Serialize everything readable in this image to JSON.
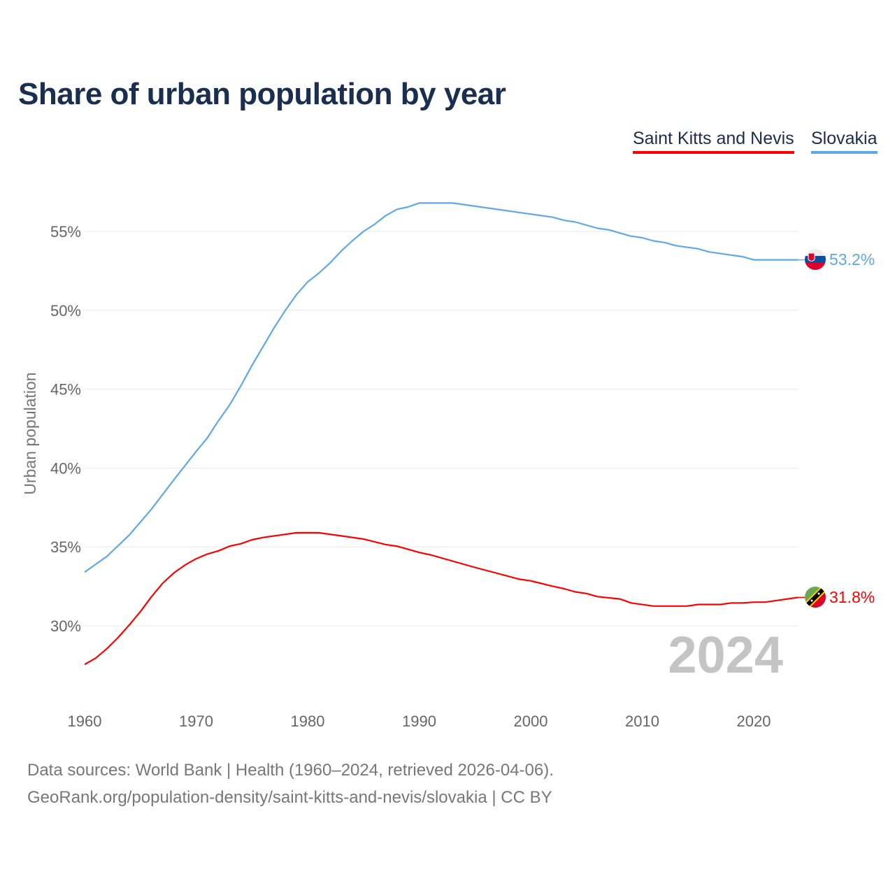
{
  "chart_data": {
    "type": "line",
    "title": "Share of urban population by year",
    "ylabel": "Urban population",
    "xlabel": "",
    "xlim": [
      1960,
      2024
    ],
    "ylim": [
      25.5,
      58.5
    ],
    "x_ticks": [
      1960,
      1970,
      1980,
      1990,
      2000,
      2010,
      2020
    ],
    "y_ticks": [
      30,
      35,
      40,
      45,
      50,
      55
    ],
    "y_tick_labels": [
      "30%",
      "35%",
      "40%",
      "45%",
      "50%",
      "55%"
    ],
    "grid": true,
    "year_watermark": "2024",
    "legend_position": "top-right",
    "series": [
      {
        "name": "Saint Kitts and Nevis",
        "color": "#ff0000",
        "end_label": "31.8%",
        "points": [
          [
            1960,
            27.55
          ],
          [
            1961,
            27.95
          ],
          [
            1962,
            28.55
          ],
          [
            1963,
            29.25
          ],
          [
            1964,
            30.05
          ],
          [
            1965,
            30.9
          ],
          [
            1966,
            31.85
          ],
          [
            1967,
            32.7
          ],
          [
            1968,
            33.35
          ],
          [
            1969,
            33.85
          ],
          [
            1970,
            34.25
          ],
          [
            1971,
            34.55
          ],
          [
            1972,
            34.75
          ],
          [
            1973,
            35.05
          ],
          [
            1974,
            35.2
          ],
          [
            1975,
            35.45
          ],
          [
            1976,
            35.6
          ],
          [
            1978,
            35.8
          ],
          [
            1979,
            35.9
          ],
          [
            1981,
            35.9
          ],
          [
            1983,
            35.7
          ],
          [
            1985,
            35.5
          ],
          [
            1987,
            35.15
          ],
          [
            1988,
            35.05
          ],
          [
            1990,
            34.65
          ],
          [
            1991,
            34.5
          ],
          [
            1995,
            33.7
          ],
          [
            1999,
            32.95
          ],
          [
            2000,
            32.85
          ],
          [
            2002,
            32.5
          ],
          [
            2003,
            32.35
          ],
          [
            2004,
            32.15
          ],
          [
            2005,
            32.05
          ],
          [
            2006,
            31.85
          ],
          [
            2008,
            31.7
          ],
          [
            2009,
            31.45
          ],
          [
            2011,
            31.25
          ],
          [
            2014,
            31.25
          ],
          [
            2015,
            31.35
          ],
          [
            2017,
            31.35
          ],
          [
            2018,
            31.45
          ],
          [
            2019,
            31.45
          ],
          [
            2020,
            31.5
          ],
          [
            2021,
            31.5
          ],
          [
            2024,
            31.8
          ]
        ]
      },
      {
        "name": "Slovakia",
        "color": "#5fa8e8",
        "end_label": "53.2%",
        "points": [
          [
            1960,
            33.4
          ],
          [
            1962,
            34.4
          ],
          [
            1964,
            35.75
          ],
          [
            1966,
            37.4
          ],
          [
            1968,
            39.25
          ],
          [
            1970,
            41.05
          ],
          [
            1971,
            41.9
          ],
          [
            1972,
            43.0
          ],
          [
            1973,
            44.0
          ],
          [
            1974,
            45.2
          ],
          [
            1975,
            46.5
          ],
          [
            1976,
            47.7
          ],
          [
            1977,
            48.9
          ],
          [
            1978,
            50.0
          ],
          [
            1979,
            51.0
          ],
          [
            1980,
            51.8
          ],
          [
            1981,
            52.35
          ],
          [
            1982,
            53.0
          ],
          [
            1983,
            53.75
          ],
          [
            1984,
            54.4
          ],
          [
            1985,
            55.0
          ],
          [
            1986,
            55.45
          ],
          [
            1987,
            56.0
          ],
          [
            1988,
            56.4
          ],
          [
            1989,
            56.55
          ],
          [
            1990,
            56.8
          ],
          [
            1993,
            56.8
          ],
          [
            1995,
            56.6
          ],
          [
            2000,
            56.1
          ],
          [
            2002,
            55.9
          ],
          [
            2003,
            55.7
          ],
          [
            2004,
            55.6
          ],
          [
            2006,
            55.2
          ],
          [
            2007,
            55.1
          ],
          [
            2009,
            54.7
          ],
          [
            2010,
            54.6
          ],
          [
            2011,
            54.4
          ],
          [
            2012,
            54.3
          ],
          [
            2013,
            54.1
          ],
          [
            2015,
            53.9
          ],
          [
            2016,
            53.7
          ],
          [
            2019,
            53.4
          ],
          [
            2020,
            53.2
          ],
          [
            2024,
            53.2
          ]
        ]
      }
    ]
  },
  "legend": {
    "items": [
      "Saint Kitts and Nevis",
      "Slovakia"
    ]
  },
  "footer": {
    "line1": "Data sources: World Bank | Health (1960–2024, retrieved 2026-04-06).",
    "line2": "GeoRank.org/population-density/saint-kitts-and-nevis/slovakia | CC BY"
  }
}
